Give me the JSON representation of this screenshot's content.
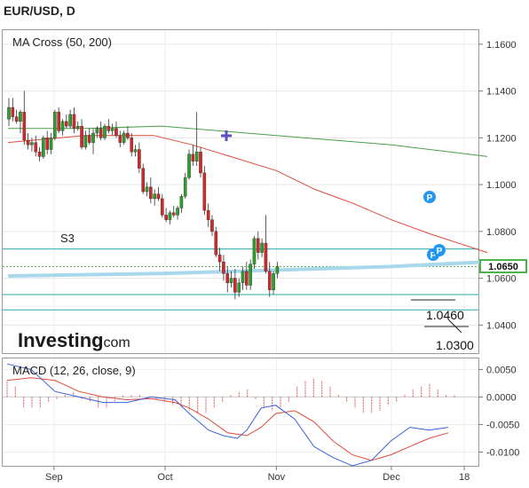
{
  "header": {
    "title": "EUR/USD, D"
  },
  "price_panel": {
    "indicator_label": "MA Cross (50, 200)",
    "s3_label": "S3",
    "current_price": "1.0650",
    "annotations": [
      "1.0460",
      "1.0300"
    ],
    "pivot_markers": [
      "P",
      "P",
      "P"
    ]
  },
  "branding": {
    "logo_main": "Investing",
    "logo_suffix": ".com"
  },
  "macd_panel": {
    "indicator_label": "MACD (12, 26, close, 9)"
  },
  "colors": {
    "up": "#2ca02c",
    "down": "#d62728",
    "ma50": "#e04a3a",
    "ma200": "#4a9e4a",
    "level": "#2aa8a8",
    "current": "#4caf50",
    "macd_line": "#3a5fd8",
    "signal_line": "#e04a3a",
    "pivot": "#2196f3"
  },
  "chart_data": [
    {
      "type": "candlestick",
      "title": "EUR/USD, D",
      "ylim": [
        1.028,
        1.166
      ],
      "y_ticks": [
        "1.1600",
        "1.1400",
        "1.1200",
        "1.1000",
        "1.0800",
        "1.0600",
        "1.0400"
      ],
      "y_tick_values": [
        1.16,
        1.14,
        1.12,
        1.1,
        1.08,
        1.06,
        1.04
      ],
      "x_labels": [
        "Sep",
        "Oct",
        "Nov",
        "Dec",
        "18"
      ],
      "x_label_index": [
        12,
        41,
        70,
        100,
        119
      ],
      "current_price": 1.065,
      "levels": [
        {
          "name": "S3",
          "value": 1.0725
        },
        {
          "name": "",
          "value": 1.053
        },
        {
          "name": "",
          "value": 1.0465
        }
      ],
      "bars": [
        [
          1.128,
          1.137,
          1.125,
          1.133
        ],
        [
          1.133,
          1.137,
          1.127,
          1.129
        ],
        [
          1.129,
          1.132,
          1.126,
          1.127
        ],
        [
          1.127,
          1.132,
          1.122,
          1.131
        ],
        [
          1.131,
          1.14,
          1.117,
          1.119
        ],
        [
          1.119,
          1.122,
          1.115,
          1.117
        ],
        [
          1.117,
          1.12,
          1.114,
          1.118
        ],
        [
          1.118,
          1.121,
          1.112,
          1.114
        ],
        [
          1.114,
          1.116,
          1.11,
          1.112
        ],
        [
          1.112,
          1.121,
          1.111,
          1.12
        ],
        [
          1.12,
          1.123,
          1.113,
          1.115
        ],
        [
          1.115,
          1.122,
          1.113,
          1.12
        ],
        [
          1.12,
          1.132,
          1.119,
          1.131
        ],
        [
          1.131,
          1.133,
          1.122,
          1.123
        ],
        [
          1.123,
          1.128,
          1.121,
          1.127
        ],
        [
          1.127,
          1.13,
          1.124,
          1.125
        ],
        [
          1.125,
          1.132,
          1.124,
          1.13
        ],
        [
          1.13,
          1.133,
          1.122,
          1.124
        ],
        [
          1.124,
          1.127,
          1.123,
          1.125
        ],
        [
          1.125,
          1.128,
          1.115,
          1.116
        ],
        [
          1.116,
          1.123,
          1.115,
          1.121
        ],
        [
          1.121,
          1.124,
          1.117,
          1.118
        ],
        [
          1.118,
          1.124,
          1.113,
          1.122
        ],
        [
          1.122,
          1.125,
          1.12,
          1.124
        ],
        [
          1.124,
          1.127,
          1.119,
          1.12
        ],
        [
          1.12,
          1.126,
          1.119,
          1.125
        ],
        [
          1.125,
          1.128,
          1.122,
          1.123
        ],
        [
          1.123,
          1.126,
          1.121,
          1.124
        ],
        [
          1.124,
          1.127,
          1.12,
          1.121
        ],
        [
          1.121,
          1.123,
          1.116,
          1.118
        ],
        [
          1.118,
          1.123,
          1.117,
          1.122
        ],
        [
          1.122,
          1.125,
          1.119,
          1.12
        ],
        [
          1.12,
          1.122,
          1.112,
          1.114
        ],
        [
          1.114,
          1.117,
          1.112,
          1.115
        ],
        [
          1.115,
          1.118,
          1.105,
          1.107
        ],
        [
          1.107,
          1.109,
          1.096,
          1.097
        ],
        [
          1.097,
          1.101,
          1.095,
          1.099
        ],
        [
          1.099,
          1.103,
          1.092,
          1.094
        ],
        [
          1.094,
          1.098,
          1.091,
          1.096
        ],
        [
          1.096,
          1.099,
          1.093,
          1.094
        ],
        [
          1.094,
          1.096,
          1.086,
          1.087
        ],
        [
          1.087,
          1.09,
          1.084,
          1.085
        ],
        [
          1.085,
          1.089,
          1.083,
          1.088
        ],
        [
          1.088,
          1.091,
          1.086,
          1.087
        ],
        [
          1.087,
          1.091,
          1.085,
          1.09
        ],
        [
          1.09,
          1.096,
          1.088,
          1.095
        ],
        [
          1.095,
          1.105,
          1.094,
          1.103
        ],
        [
          1.103,
          1.115,
          1.102,
          1.113
        ],
        [
          1.113,
          1.117,
          1.108,
          1.11
        ],
        [
          1.11,
          1.131,
          1.108,
          1.114
        ],
        [
          1.114,
          1.116,
          1.103,
          1.105
        ],
        [
          1.105,
          1.108,
          1.087,
          1.089
        ],
        [
          1.089,
          1.092,
          1.082,
          1.085
        ],
        [
          1.085,
          1.087,
          1.078,
          1.08
        ],
        [
          1.08,
          1.082,
          1.069,
          1.07
        ],
        [
          1.07,
          1.073,
          1.063,
          1.067
        ],
        [
          1.067,
          1.07,
          1.059,
          1.062
        ],
        [
          1.062,
          1.065,
          1.054,
          1.058
        ],
        [
          1.058,
          1.063,
          1.056,
          1.06
        ],
        [
          1.06,
          1.064,
          1.051,
          1.054
        ],
        [
          1.054,
          1.06,
          1.052,
          1.058
        ],
        [
          1.058,
          1.065,
          1.055,
          1.063
        ],
        [
          1.063,
          1.067,
          1.055,
          1.057
        ],
        [
          1.057,
          1.068,
          1.055,
          1.066
        ],
        [
          1.066,
          1.078,
          1.064,
          1.077
        ],
        [
          1.077,
          1.08,
          1.068,
          1.071
        ],
        [
          1.071,
          1.077,
          1.069,
          1.075
        ],
        [
          1.075,
          1.087,
          1.062,
          1.063
        ],
        [
          1.063,
          1.067,
          1.052,
          1.055
        ],
        [
          1.055,
          1.063,
          1.053,
          1.062
        ],
        [
          1.062,
          1.067,
          1.06,
          1.065
        ]
      ],
      "ma50": [
        [
          0,
          1.118
        ],
        [
          20,
          1.121
        ],
        [
          38,
          1.121
        ],
        [
          48,
          1.117
        ],
        [
          58,
          1.112
        ],
        [
          70,
          1.106
        ],
        [
          80,
          1.098
        ],
        [
          90,
          1.092
        ],
        [
          100,
          1.085
        ],
        [
          110,
          1.079
        ],
        [
          125,
          1.071
        ]
      ],
      "ma200": [
        [
          0,
          1.124
        ],
        [
          20,
          1.124
        ],
        [
          40,
          1.125
        ],
        [
          70,
          1.121
        ],
        [
          85,
          1.119
        ],
        [
          100,
          1.117
        ],
        [
          125,
          1.112
        ]
      ],
      "long_ma": [
        [
          0,
          1.061
        ],
        [
          40,
          1.062
        ],
        [
          70,
          1.0635
        ],
        [
          100,
          1.065
        ],
        [
          125,
          1.067
        ]
      ]
    },
    {
      "type": "line",
      "title": "MACD (12, 26, close, 9)",
      "ylim": [
        -0.0125,
        0.007
      ],
      "y_ticks": [
        "0.0050",
        "0.0000",
        "-0.0050",
        "-0.0100"
      ],
      "y_tick_values": [
        0.005,
        0,
        -0.005,
        -0.01
      ],
      "series": [
        {
          "values": [
            [
              0,
              0.006
            ],
            [
              5,
              0.005
            ],
            [
              10,
              0.001
            ],
            [
              15,
              0.0
            ],
            [
              20,
              -0.001
            ],
            [
              25,
              -0.001
            ],
            [
              30,
              0.0
            ],
            [
              35,
              -0.0005
            ],
            [
              38,
              -0.003
            ],
            [
              42,
              -0.006
            ],
            [
              45,
              -0.007
            ],
            [
              48,
              -0.0075
            ],
            [
              50,
              -0.006
            ],
            [
              53,
              -0.002
            ],
            [
              56,
              -0.0015
            ],
            [
              60,
              -0.004
            ],
            [
              64,
              -0.009
            ],
            [
              68,
              -0.011
            ],
            [
              72,
              -0.0125
            ],
            [
              76,
              -0.0115
            ],
            [
              80,
              -0.008
            ],
            [
              84,
              -0.0055
            ],
            [
              88,
              -0.006
            ],
            [
              92,
              -0.0055
            ]
          ]
        },
        {
          "values": [
            [
              0,
              0.003
            ],
            [
              5,
              0.0035
            ],
            [
              10,
              0.003
            ],
            [
              15,
              0.001
            ],
            [
              20,
              0.0
            ],
            [
              25,
              -0.0005
            ],
            [
              30,
              -0.0003
            ],
            [
              35,
              -0.001
            ],
            [
              38,
              -0.002
            ],
            [
              42,
              -0.004
            ],
            [
              46,
              -0.0065
            ],
            [
              50,
              -0.007
            ],
            [
              53,
              -0.0055
            ],
            [
              56,
              -0.003
            ],
            [
              60,
              -0.0025
            ],
            [
              64,
              -0.0045
            ],
            [
              68,
              -0.008
            ],
            [
              72,
              -0.0105
            ],
            [
              76,
              -0.0115
            ],
            [
              80,
              -0.0105
            ],
            [
              84,
              -0.009
            ],
            [
              88,
              -0.0075
            ],
            [
              92,
              -0.0065
            ]
          ]
        }
      ],
      "histogram": [
        0.003,
        0.002,
        -0.002,
        -0.002,
        -0.002,
        -0.001,
        -0.0005,
        0.0005,
        0.001,
        -0.0005,
        -0.001,
        -0.002,
        -0.002,
        -0.001,
        0.0003,
        0.0005,
        0.0005,
        -0.0003,
        -0.0005,
        -0.001,
        -0.0015,
        -0.002,
        -0.0025,
        -0.003,
        -0.003,
        -0.002,
        -0.001,
        0.0005,
        0.001,
        0.0015,
        -0.0005,
        -0.002,
        -0.0025,
        -0.002,
        -0.001,
        0.002,
        0.003,
        0.0035,
        0.003,
        0.002,
        0.0005,
        -0.001,
        -0.002,
        -0.003,
        -0.003,
        -0.0025,
        -0.0015,
        -0.001,
        0.0005,
        0.0015,
        0.002,
        0.0025,
        0.0015,
        0.0005,
        0.0003
      ]
    }
  ]
}
